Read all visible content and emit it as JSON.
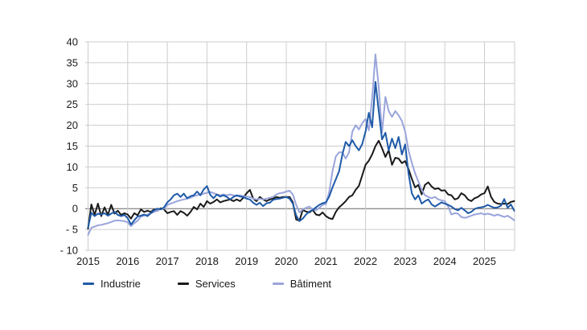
{
  "colors": {
    "background": "#FFFFFF",
    "grid": "#CCCCCC",
    "zero_line": "#666666",
    "text": "#1A1A1A",
    "industrie": "#1F5AA8",
    "services": "#1A1A1A",
    "batiment": "#9AA5DB"
  },
  "chart_data": {
    "type": "line",
    "title": "",
    "xlabel": "",
    "ylabel": "",
    "x_unit": "month",
    "x_start": "2015-01",
    "x_end": "2025-10",
    "x_tick_labels": [
      "2015",
      "2016",
      "2017",
      "2018",
      "2019",
      "2020",
      "2021",
      "2022",
      "2023",
      "2024",
      "2025"
    ],
    "y_ticks": [
      40,
      35,
      30,
      25,
      20,
      15,
      10,
      5,
      0,
      -5,
      -10
    ],
    "y_tick_labels": [
      "40",
      "35",
      "30",
      "25",
      "20",
      "15",
      "10",
      "5",
      "0",
      "- 5",
      "- 10"
    ],
    "ylim": [
      -10,
      40
    ],
    "grid": true,
    "zero_line": true,
    "legend_position": "bottom",
    "series": [
      {
        "name": "Industrie",
        "color": "#1F5AA8",
        "values": [
          -4.5,
          -1.0,
          -1.8,
          -1.2,
          -1.4,
          -1.1,
          -1.7,
          -1.2,
          -0.8,
          -1.5,
          -1.8,
          -1.5,
          -2.3,
          -3.8,
          -2.8,
          -1.9,
          -1.7,
          -1.4,
          -1.8,
          -1.1,
          -0.4,
          0.0,
          -0.2,
          0.3,
          1.5,
          2.2,
          3.2,
          3.6,
          2.8,
          3.6,
          2.5,
          3.0,
          3.2,
          4.1,
          3.2,
          4.6,
          5.4,
          3.3,
          2.5,
          3.4,
          2.9,
          3.2,
          2.8,
          2.2,
          2.8,
          3.2,
          2.9,
          2.8,
          2.4,
          2.2,
          1.4,
          0.9,
          1.4,
          0.6,
          1.3,
          1.4,
          2.1,
          2.3,
          2.4,
          2.6,
          2.8,
          2.4,
          1.2,
          -1.6,
          -3.0,
          -2.4,
          -1.4,
          -0.7,
          -0.3,
          0.3,
          0.9,
          1.3,
          1.5,
          2.9,
          5.1,
          7.0,
          9.0,
          13.0,
          16.0,
          15.0,
          16.4,
          15.0,
          14.0,
          15.5,
          18.5,
          23.0,
          19.5,
          30.4,
          23.4,
          16.6,
          18.2,
          14.0,
          16.8,
          14.5,
          17.2,
          13.0,
          15.4,
          8.5,
          3.7,
          2.2,
          3.2,
          1.2,
          1.8,
          2.2,
          1.0,
          0.5,
          1.0,
          1.5,
          1.2,
          0.9,
          0.5,
          -0.1,
          -0.4,
          0.2,
          -0.4,
          -1.1,
          -0.8,
          -0.1,
          0.2,
          0.3,
          0.5,
          0.9,
          0.5,
          0.2,
          0.3,
          0.7,
          2.3,
          0.2,
          1.0,
          -0.5
        ]
      },
      {
        "name": "Services",
        "color": "#1A1A1A",
        "values": [
          -4.8,
          1.0,
          -1.5,
          1.2,
          -1.8,
          0.3,
          -1.5,
          0.9,
          -1.2,
          -0.5,
          -1.5,
          -1.1,
          -1.4,
          -2.4,
          -1.1,
          -1.6,
          -0.2,
          -0.8,
          -0.5,
          -0.8,
          -0.2,
          -0.5,
          0.1,
          -0.2,
          -1.1,
          -0.8,
          -0.6,
          -1.5,
          -0.6,
          -1.0,
          -1.7,
          -0.8,
          0.4,
          -0.2,
          1.2,
          0.4,
          1.8,
          1.2,
          1.6,
          2.2,
          1.5,
          1.8,
          2.0,
          2.2,
          1.8,
          2.2,
          1.8,
          2.6,
          3.7,
          4.5,
          2.4,
          1.8,
          2.8,
          2.2,
          1.8,
          2.2,
          2.4,
          2.8,
          2.6,
          2.8,
          2.8,
          2.8,
          1.5,
          -2.6,
          -2.9,
          -0.3,
          -0.7,
          -0.9,
          -0.3,
          -1.4,
          -1.6,
          -0.9,
          -1.8,
          -2.3,
          -2.5,
          -0.8,
          0.3,
          1.0,
          1.8,
          2.8,
          3.2,
          4.5,
          5.5,
          8.0,
          10.5,
          11.5,
          13.0,
          15.0,
          16.3,
          14.5,
          12.4,
          14.0,
          10.5,
          12.2,
          12.0,
          10.9,
          11.4,
          9.5,
          7.2,
          5.1,
          5.7,
          3.4,
          5.7,
          6.3,
          5.3,
          4.7,
          4.9,
          4.3,
          4.4,
          3.4,
          3.2,
          2.2,
          2.5,
          3.7,
          3.2,
          2.2,
          1.8,
          2.5,
          2.8,
          3.4,
          3.7,
          5.3,
          2.8,
          1.6,
          1.2,
          1.1,
          1.2,
          1.1,
          1.6,
          1.8
        ]
      },
      {
        "name": "Bâtiment",
        "color": "#9AA5DB",
        "values": [
          -6.3,
          -4.6,
          -4.3,
          -4.0,
          -3.9,
          -3.7,
          -3.5,
          -3.2,
          -2.9,
          -2.8,
          -2.9,
          -3.0,
          -3.3,
          -4.2,
          -3.5,
          -2.9,
          -1.9,
          -1.7,
          -1.4,
          -1.1,
          -0.8,
          -0.4,
          -0.1,
          0.0,
          0.9,
          1.2,
          1.5,
          1.8,
          2.0,
          2.2,
          2.4,
          2.6,
          3.0,
          3.2,
          3.4,
          3.6,
          3.8,
          4.0,
          3.7,
          3.4,
          3.2,
          3.4,
          3.2,
          3.4,
          3.2,
          3.0,
          3.2,
          3.0,
          2.9,
          2.8,
          2.4,
          2.2,
          2.4,
          2.2,
          2.4,
          2.6,
          2.8,
          3.4,
          3.7,
          3.8,
          4.1,
          4.3,
          3.4,
          0.9,
          -0.9,
          -0.2,
          0.2,
          0.5,
          -0.2,
          -0.4,
          0.2,
          0.9,
          1.1,
          4.0,
          9.0,
          12.5,
          13.5,
          13.5,
          12.0,
          13.5,
          18.5,
          20.0,
          19.0,
          20.5,
          21.5,
          18.8,
          26.4,
          37.0,
          29.1,
          18.2,
          26.8,
          23.4,
          22.0,
          23.4,
          22.4,
          21.0,
          18.5,
          14.0,
          11.0,
          8.5,
          6.5,
          4.5,
          3.2,
          2.8,
          2.5,
          2.8,
          2.2,
          2.0,
          1.8,
          0.5,
          -1.4,
          -1.1,
          -1.2,
          -2.0,
          -2.2,
          -2.0,
          -1.7,
          -1.4,
          -1.3,
          -1.1,
          -1.4,
          -1.2,
          -1.4,
          -1.7,
          -1.4,
          -1.7,
          -2.0,
          -1.7,
          -2.2,
          -2.8
        ]
      }
    ]
  }
}
